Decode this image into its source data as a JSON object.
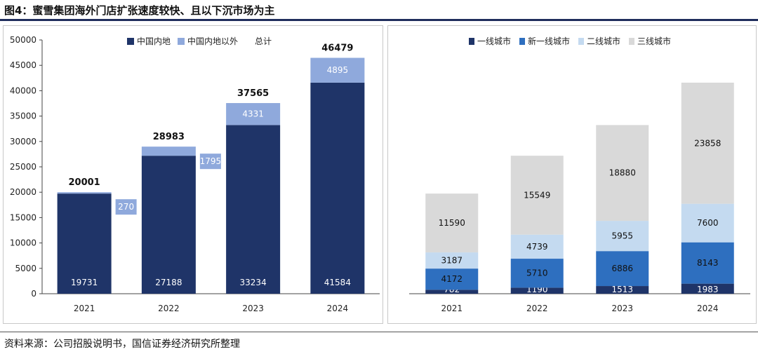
{
  "header": {
    "title": "图4：蜜雪集团海外门店扩张速度较快、且以下沉市场为主",
    "source": "资料来源：公司招股说明书，国信证券经济研究所整理"
  },
  "chart_data": [
    {
      "type": "bar",
      "stacked": true,
      "categories": [
        "2021",
        "2022",
        "2023",
        "2024"
      ],
      "series": [
        {
          "name": "中国内地",
          "values": [
            19731,
            27188,
            33234,
            41584
          ],
          "color": "#1f3468"
        },
        {
          "name": "中国内地以外",
          "values": [
            270,
            1795,
            4331,
            4895
          ],
          "color": "#8fa9dc"
        }
      ],
      "totals_label": "总计",
      "totals": [
        20001,
        28983,
        37565,
        46479
      ],
      "ylim": [
        0,
        50000
      ],
      "yticks": [
        0,
        5000,
        10000,
        15000,
        20000,
        25000,
        30000,
        35000,
        40000,
        45000,
        50000
      ],
      "legend_position": "top"
    },
    {
      "type": "bar",
      "stacked": true,
      "categories": [
        "2021",
        "2022",
        "2023",
        "2024"
      ],
      "series": [
        {
          "name": "一线城市",
          "values": [
            782,
            1190,
            1513,
            1983
          ],
          "color": "#1f3468"
        },
        {
          "name": "新一线城市",
          "values": [
            4172,
            5710,
            6886,
            8143
          ],
          "color": "#2e6fbf"
        },
        {
          "name": "二线城市",
          "values": [
            3187,
            4739,
            5955,
            7600
          ],
          "color": "#c4daf0"
        },
        {
          "name": "三线城市",
          "values": [
            11590,
            15549,
            18880,
            23858
          ],
          "color": "#d9d9d9"
        }
      ],
      "legend_position": "top"
    }
  ]
}
